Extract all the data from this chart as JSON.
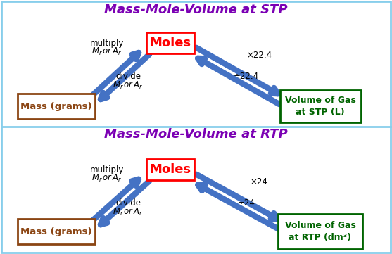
{
  "title_stp": "Mass-Mole-Volume at STP",
  "title_rtp": "Mass-Mole-Volume at RTP",
  "title_color": "#7B00B4",
  "title_fontsize": 13,
  "outer_border_color": "#87CEEB",
  "divider_color": "#87CEEB",
  "mass_box_color": "#8B4513",
  "volume_stp_box_color": "#006400",
  "volume_rtp_box_color": "#006400",
  "moles_border_color": "#FF0000",
  "moles_text_color": "#FF0000",
  "arrow_color": "#4472C4",
  "multiply_label": "multiply",
  "divide_label": "divide",
  "moles_label": "Moles",
  "mass_label": "Mass (grams)",
  "volume_stp_label": "Volume of Gas\nat STP (L)",
  "volume_rtp_label": "Volume of Gas\nat RTP (dm³)",
  "times_stp": "×22.4",
  "divide_stp": "÷22.4",
  "times_rtp": "×24",
  "divide_rtp": "÷24"
}
